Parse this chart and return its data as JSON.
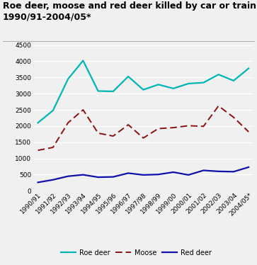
{
  "title_line1": "Roe deer, moose and red deer killed by car or train.",
  "title_line2": "1990/91-2004/05*",
  "x_labels": [
    "1990/91",
    "1991/92",
    "1992/93",
    "1993/94",
    "1994/95",
    "1995/96",
    "1996/97",
    "1997/98",
    "1998/99",
    "1999/00",
    "2000/01",
    "2001/02",
    "2002/03",
    "2003/04",
    "2004/05*"
  ],
  "roe_deer": [
    2100,
    2480,
    3450,
    4020,
    3080,
    3070,
    3530,
    3120,
    3280,
    3160,
    3310,
    3340,
    3590,
    3400,
    3780
  ],
  "moose": [
    1250,
    1340,
    2100,
    2500,
    1780,
    1690,
    2040,
    1630,
    1920,
    1950,
    2010,
    1990,
    2620,
    2270,
    1820
  ],
  "red_deer": [
    260,
    340,
    450,
    495,
    420,
    430,
    545,
    490,
    505,
    575,
    490,
    630,
    600,
    590,
    730
  ],
  "roe_color": "#00b5b5",
  "moose_color": "#8b1010",
  "red_deer_color": "#1010aa",
  "ylim": [
    0,
    4500
  ],
  "yticks": [
    0,
    500,
    1000,
    1500,
    2000,
    2500,
    3000,
    3500,
    4000,
    4500
  ],
  "bg_color": "#f0f0f0",
  "plot_bg_color": "#f0f0f0",
  "grid_color": "#ffffff",
  "title_fontsize": 9.0,
  "tick_fontsize": 6.5
}
